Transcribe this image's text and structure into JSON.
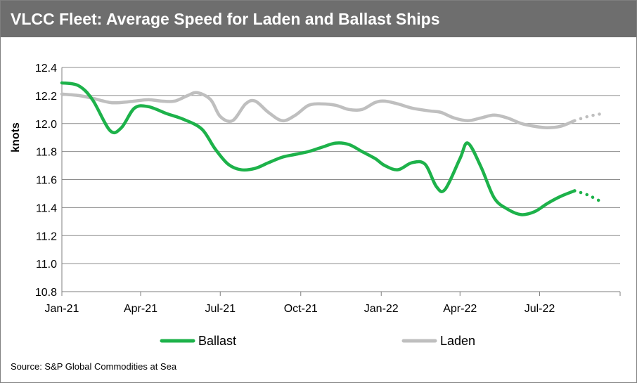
{
  "title": "VLCC Fleet: Average Speed for Laden and Ballast Ships",
  "source": "Source: S&P Global Commodities at Sea",
  "chart_data": {
    "type": "line",
    "ylabel": "knots",
    "xlabel": "",
    "ylim": [
      10.8,
      12.4
    ],
    "yticks": [
      "12.4",
      "12.2",
      "12.0",
      "11.8",
      "11.6",
      "11.4",
      "11.2",
      "11.0",
      "10.8"
    ],
    "xticks": [
      "Jan-21",
      "Apr-21",
      "Jul-21",
      "Oct-21",
      "Jan-22",
      "Apr-22",
      "Jul-22"
    ],
    "grid": true,
    "legend_position": "bottom",
    "colors": {
      "Ballast": "#1db24a",
      "Laden": "#bfbfbf"
    },
    "series": [
      {
        "name": "Ballast",
        "x": [
          "2021-01-01",
          "2021-01-20",
          "2021-02-05",
          "2021-02-25",
          "2021-03-10",
          "2021-03-25",
          "2021-04-10",
          "2021-05-01",
          "2021-05-20",
          "2021-06-10",
          "2021-06-25",
          "2021-07-10",
          "2021-07-25",
          "2021-08-10",
          "2021-08-25",
          "2021-09-10",
          "2021-09-25",
          "2021-10-10",
          "2021-10-25",
          "2021-11-10",
          "2021-11-25",
          "2021-12-10",
          "2021-12-25",
          "2022-01-05",
          "2022-01-20",
          "2022-02-05",
          "2022-02-20",
          "2022-03-05",
          "2022-03-15",
          "2022-04-01",
          "2022-04-10",
          "2022-04-25",
          "2022-05-10",
          "2022-05-25",
          "2022-06-10",
          "2022-06-25",
          "2022-07-10",
          "2022-07-25",
          "2022-08-10"
        ],
        "values": [
          12.29,
          12.27,
          12.17,
          11.95,
          11.97,
          12.11,
          12.12,
          12.07,
          12.03,
          11.96,
          11.82,
          11.71,
          11.67,
          11.68,
          11.72,
          11.76,
          11.78,
          11.8,
          11.83,
          11.86,
          11.85,
          11.8,
          11.75,
          11.7,
          11.67,
          11.72,
          11.71,
          11.55,
          11.53,
          11.75,
          11.86,
          11.69,
          11.47,
          11.39,
          11.35,
          11.37,
          11.43,
          11.48,
          11.52
        ],
        "projection": {
          "x": [
            "2022-08-10",
            "2022-08-25",
            "2022-09-10"
          ],
          "values": [
            11.52,
            11.49,
            11.44
          ]
        }
      },
      {
        "name": "Laden",
        "x": [
          "2021-01-01",
          "2021-01-20",
          "2021-02-05",
          "2021-02-25",
          "2021-03-10",
          "2021-03-25",
          "2021-04-10",
          "2021-04-25",
          "2021-05-10",
          "2021-05-25",
          "2021-06-05",
          "2021-06-20",
          "2021-07-01",
          "2021-07-15",
          "2021-07-30",
          "2021-08-10",
          "2021-08-25",
          "2021-09-10",
          "2021-09-25",
          "2021-10-10",
          "2021-10-25",
          "2021-11-10",
          "2021-11-25",
          "2021-12-10",
          "2021-12-25",
          "2022-01-05",
          "2022-01-20",
          "2022-02-05",
          "2022-02-25",
          "2022-03-10",
          "2022-03-25",
          "2022-04-10",
          "2022-04-25",
          "2022-05-10",
          "2022-05-25",
          "2022-06-10",
          "2022-06-25",
          "2022-07-10",
          "2022-07-25",
          "2022-08-10"
        ],
        "values": [
          12.21,
          12.2,
          12.18,
          12.15,
          12.15,
          12.16,
          12.17,
          12.16,
          12.16,
          12.2,
          12.22,
          12.17,
          12.05,
          12.02,
          12.14,
          12.16,
          12.08,
          12.02,
          12.06,
          12.13,
          12.14,
          12.13,
          12.1,
          12.1,
          12.15,
          12.16,
          12.14,
          12.11,
          12.09,
          12.08,
          12.04,
          12.02,
          12.04,
          12.06,
          12.04,
          12.0,
          11.98,
          11.97,
          11.98,
          12.02
        ],
        "projection": {
          "x": [
            "2022-08-10",
            "2022-08-25",
            "2022-09-10"
          ],
          "values": [
            12.02,
            12.05,
            12.07
          ]
        }
      }
    ]
  }
}
